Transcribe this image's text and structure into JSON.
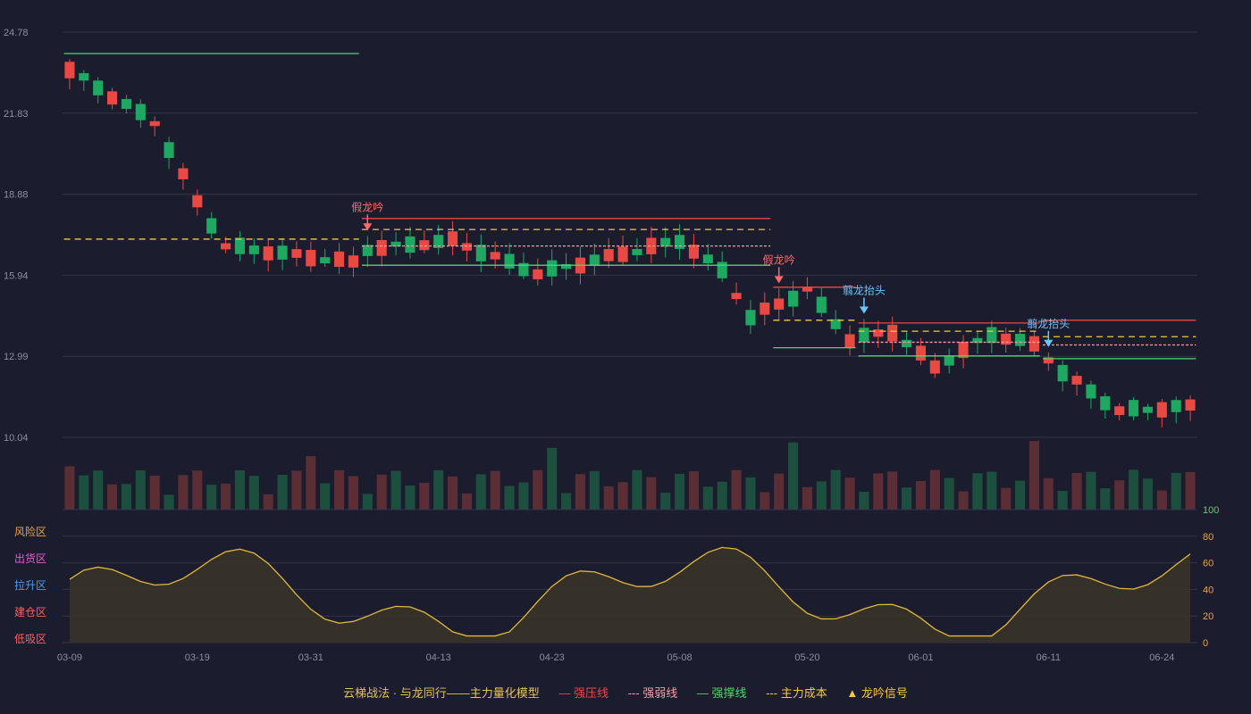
{
  "chart_data": [
    {
      "type": "candlestick",
      "title": "",
      "y_ticks": [
        "24.78",
        "21.83",
        "18.88",
        "15.94",
        "12.99",
        "10.04"
      ],
      "ylim": [
        10.04,
        24.78
      ],
      "x_ticks": [
        "03-09",
        "03-19",
        "03-31",
        "04-13",
        "04-23",
        "05-08",
        "05-20",
        "06-01",
        "06-11",
        "06-24"
      ],
      "candles_count": 80,
      "annotations": [
        {
          "label": "假龙吟",
          "at_index": 21,
          "color": "#ff6b6b"
        },
        {
          "label": "假龙吟",
          "at_index": 50,
          "color": "#ff6b6b"
        },
        {
          "label": "翦龙抬头",
          "at_index": 56,
          "color": "#6fc3ff"
        },
        {
          "label": "翦龙抬头",
          "at_index": 69,
          "color": "#6fc3ff"
        }
      ],
      "colors": {
        "up": "#e84a43",
        "down": "#1fa862",
        "resist": "#e84a43",
        "weak": "#ff9aa5",
        "support": "#4cd964",
        "cost": "#f5c93a"
      }
    },
    {
      "type": "bar",
      "title": "",
      "series_name": "",
      "colors": {
        "up": "#5b2d34",
        "down": "#1d4f3e"
      }
    },
    {
      "type": "area",
      "title": "",
      "ylim": [
        0,
        100
      ],
      "y_ticks_right": [
        "100",
        "80",
        "60",
        "40",
        "20",
        "0"
      ],
      "zone_labels": [
        {
          "label": "风险区",
          "color": "#f0a33c"
        },
        {
          "label": "出货区",
          "color": "#e75cd9"
        },
        {
          "label": "拉升区",
          "color": "#4a9cf2"
        },
        {
          "label": "建仓区",
          "color": "#ff5f5f"
        },
        {
          "label": "低吸区",
          "color": "#ff5f5f"
        }
      ],
      "colors": {
        "line": "#e2b73a",
        "fill": "#3a3428"
      }
    }
  ],
  "legend": {
    "title": "云梯战法 · 与龙同行——主力量化模型",
    "items": [
      {
        "marker": "—",
        "label": "强压线",
        "color": "#e84a43"
      },
      {
        "marker": "---",
        "label": "强弱线",
        "color": "#ff9aa5"
      },
      {
        "marker": "—",
        "label": "强撑线",
        "color": "#4cd964"
      },
      {
        "marker": "---",
        "label": "主力成本",
        "color": "#f5c93a"
      },
      {
        "marker": "▲",
        "label": "龙吟信号",
        "color": "#f5c93a"
      }
    ]
  }
}
